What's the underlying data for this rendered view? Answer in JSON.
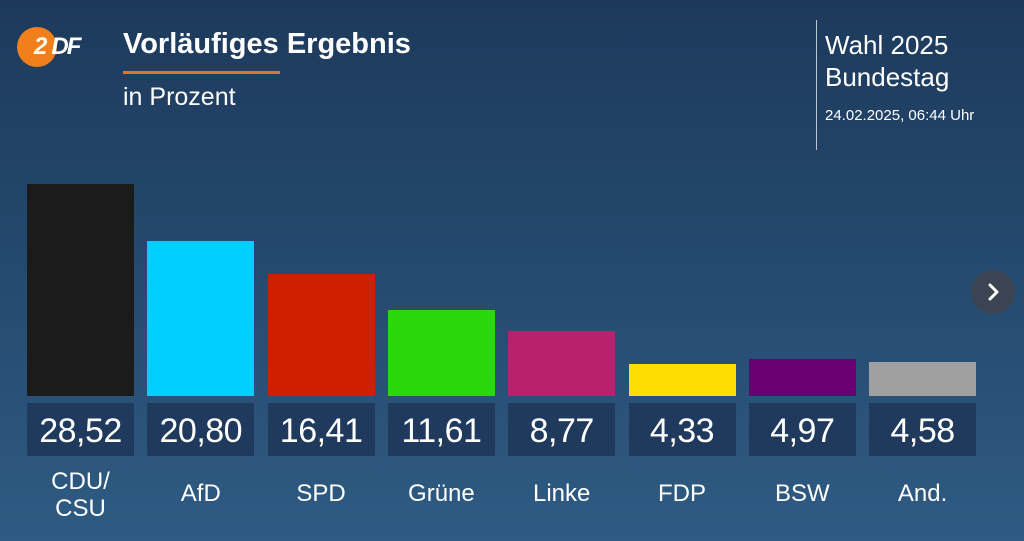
{
  "header": {
    "logo": "ZDF",
    "title": "Vorläufiges Ergebnis",
    "subtitle": "in Prozent",
    "election": "Wahl 2025",
    "body": "Bundestag",
    "timestamp": "24.02.2025, 06:44 Uhr",
    "accent": "#e07828"
  },
  "navigation": {
    "next_icon": "chevron-right-icon"
  },
  "chart_data": {
    "type": "bar",
    "categories": [
      "CDU/\nCSU",
      "AfD",
      "SPD",
      "Grüne",
      "Linke",
      "FDP",
      "BSW",
      "And."
    ],
    "values": [
      28.52,
      20.8,
      16.41,
      11.61,
      8.77,
      4.33,
      4.97,
      4.58
    ],
    "value_labels": [
      "28,52",
      "20,80",
      "16,41",
      "11,61",
      "8,77",
      "4,33",
      "4,97",
      "4,58"
    ],
    "colors": [
      "#1b1b1b",
      "#00cfff",
      "#d01f00",
      "#2bd80c",
      "#b9206e",
      "#fedd00",
      "#6a0070",
      "#a0a0a0"
    ],
    "title": "Vorläufiges Ergebnis",
    "subtitle": "in Prozent",
    "ylim": [
      0,
      28.52
    ],
    "grid": false,
    "legend": "none"
  }
}
